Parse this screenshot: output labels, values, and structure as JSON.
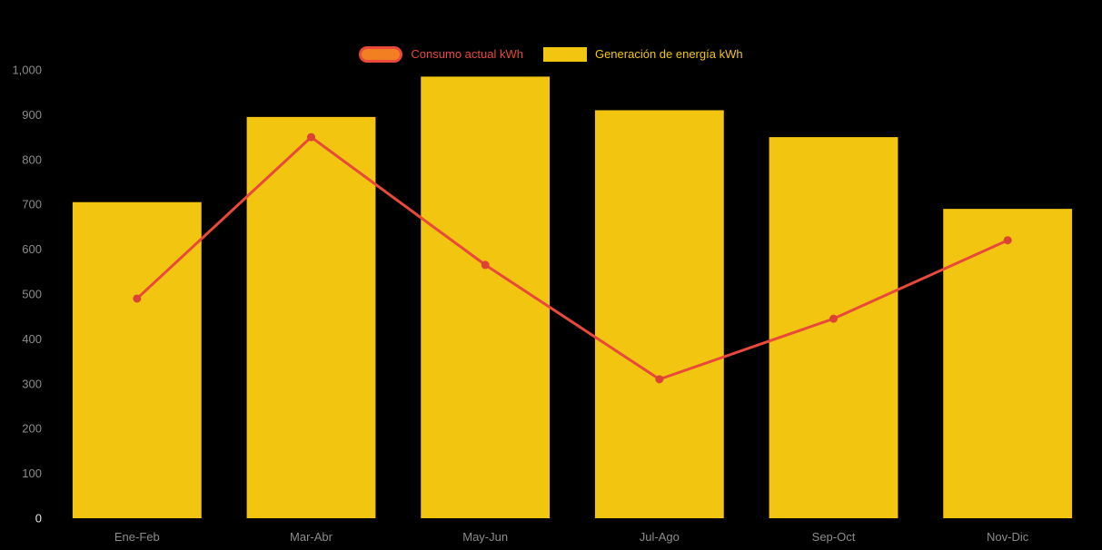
{
  "legend": {
    "items": [
      {
        "id": "consumo",
        "label": "Consumo actual kWh",
        "swatch_fill": "#F28022",
        "swatch_border": "#E8493A",
        "text_color": "#E8493A"
      },
      {
        "id": "generacion",
        "label": "Generación de energía kWh",
        "swatch_fill": "#F2C511",
        "swatch_border": "",
        "text_color": "#F2C511"
      }
    ]
  },
  "chart_data": {
    "type": "bar",
    "title": "",
    "xlabel": "",
    "ylabel": "",
    "categories": [
      "Ene-Feb",
      "Mar-Abr",
      "May-Jun",
      "Jul-Ago",
      "Sep-Oct",
      "Nov-Dic"
    ],
    "series": [
      {
        "name": "Generación de energía kWh",
        "type": "bar",
        "color": "#F2C511",
        "values": [
          705,
          895,
          985,
          910,
          850,
          690
        ]
      },
      {
        "name": "Consumo actual kWh",
        "type": "line",
        "color": "#E8493A",
        "marker_color": "#DB4335",
        "values": [
          490,
          850,
          565,
          310,
          445,
          620
        ]
      }
    ],
    "ylim": [
      0,
      1000
    ],
    "ytick_step": 100,
    "ytick_labels": [
      "0",
      "100",
      "200",
      "300",
      "400",
      "500",
      "600",
      "700",
      "800",
      "900",
      "1,000"
    ],
    "background": "#000000",
    "axis_label_color": "#8C8C8C",
    "axis_zero_label_color": "#E6E6E6",
    "grid": false,
    "legend_position": "top"
  }
}
